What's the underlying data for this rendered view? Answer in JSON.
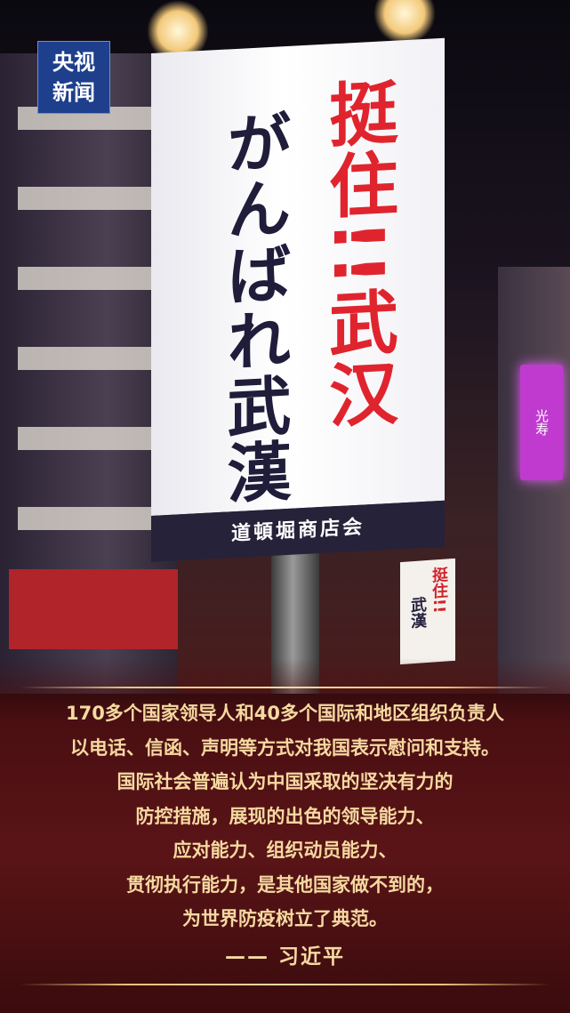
{
  "logo": {
    "line1": "央视",
    "line2": "新闻"
  },
  "banner": {
    "red_text": "挺住!!武汉",
    "dark_text": "がんばれ武漢",
    "footer": "道頓堀商店会"
  },
  "small_banner": {
    "red_text": "挺住!!",
    "dark_text": "武漢"
  },
  "neon_sign": "光寿",
  "quote_lines": [
    "170多个国家领导人和40多个国际和地区组织负责人",
    "以电话、信函、声明等方式对我国表示慰问和支持。",
    "国际社会普遍认为中国采取的坚决有力的",
    "防控措施，展现的出色的领导能力、",
    "应对能力、组织动员能力、",
    "贯彻执行能力，是其他国家做不到的，",
    "为世界防疫树立了典范。"
  ],
  "author": "—— 习近平",
  "colors": {
    "logo_blue": "#1d3f8c",
    "gold_text": "#f6d9a0",
    "banner_red": "#e0242e",
    "deep_red": "#5a1417"
  }
}
